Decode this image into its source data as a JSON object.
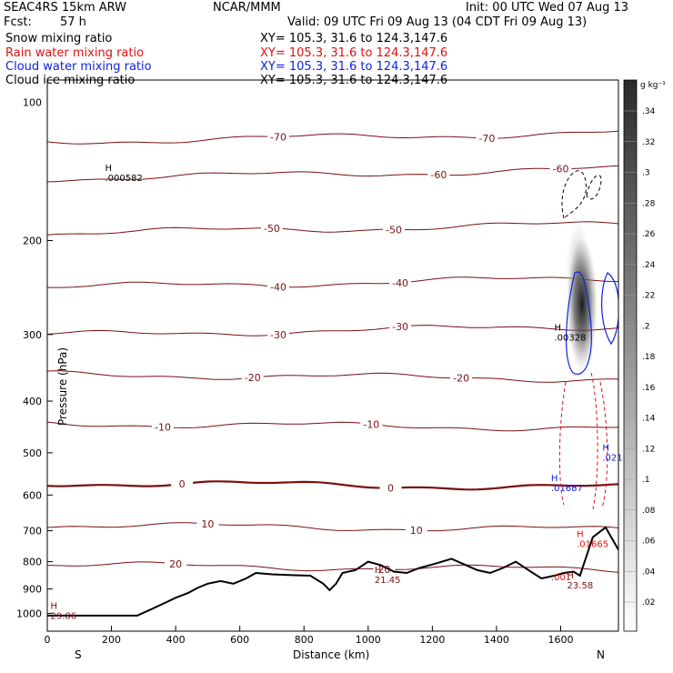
{
  "header": {
    "model": "SEAC4RS 15km ARW",
    "org": "NCAR/MMM",
    "init": "Init: 00 UTC Wed 07 Aug 13",
    "fcst_label": "Fcst:",
    "fcst_value": "57 h",
    "valid": "Valid: 09 UTC Fri 09 Aug 13 (04 CDT Fri 09 Aug 13)"
  },
  "legend": [
    {
      "name": "Snow mixing ratio",
      "xy": "XY= 105.3, 31.6 to 124.3,147.6",
      "color": "#000000"
    },
    {
      "name": "Rain water mixing ratio",
      "xy": "XY= 105.3, 31.6 to 124.3,147.6",
      "color": "#e01010"
    },
    {
      "name": "Cloud water mixing ratio",
      "xy": "XY= 105.3, 31.6 to 124.3,147.6",
      "color": "#1020e0"
    },
    {
      "name": "Cloud ice mixing ratio",
      "xy": "XY= 105.3, 31.6 to 124.3,147.6",
      "color": "#000000"
    }
  ],
  "chart_data": {
    "type": "line",
    "xlabel": "Distance (km)",
    "ylabel": "Pressure (hPa)",
    "xlim": [
      0,
      1780
    ],
    "ylim": [
      1080,
      100
    ],
    "y_log": true,
    "x_ticks": [
      "0",
      "200",
      "400",
      "600",
      "800",
      "1000",
      "1200",
      "1400",
      "1600"
    ],
    "y_ticks": [
      "200",
      "300",
      "400",
      "500",
      "600",
      "700",
      "800",
      "900",
      "1000"
    ],
    "y_top_tick": "100",
    "direction_left": "S",
    "direction_right": "N",
    "colorbar": {
      "unit": "g kg⁻¹",
      "labels": [
        ".34",
        ".32",
        ".3",
        ".28",
        ".26",
        ".24",
        ".22",
        ".2",
        ".18",
        ".16",
        ".14",
        ".12",
        ".1",
        ".08",
        ".06",
        ".04",
        ".02"
      ]
    },
    "temperature_contours": [
      {
        "level": "-70",
        "p": 128,
        "label_x": 720
      },
      {
        "level": "-60",
        "p": 150,
        "label_x": 1600
      },
      {
        "level": "-50",
        "p": 190,
        "label_x": 1080
      },
      {
        "level": "-40",
        "p": 240,
        "label_x": 1100
      },
      {
        "level": "-30",
        "p": 295,
        "label_x": 1100
      },
      {
        "level": "-20",
        "p": 360,
        "label_x": 640
      },
      {
        "level": "-10",
        "p": 445,
        "label_x": 360
      },
      {
        "level": "0",
        "p": 575,
        "label_x": 420,
        "bold": true
      },
      {
        "level": "10",
        "p": 690,
        "label_x": 500
      },
      {
        "level": "20",
        "p": 820,
        "label_x": 400
      }
    ],
    "terrain": [
      [
        0,
        1010
      ],
      [
        280,
        1010
      ],
      [
        320,
        985
      ],
      [
        360,
        960
      ],
      [
        400,
        935
      ],
      [
        440,
        915
      ],
      [
        470,
        895
      ],
      [
        500,
        880
      ],
      [
        540,
        870
      ],
      [
        580,
        880
      ],
      [
        620,
        860
      ],
      [
        650,
        840
      ],
      [
        700,
        845
      ],
      [
        760,
        848
      ],
      [
        820,
        850
      ],
      [
        860,
        880
      ],
      [
        880,
        905
      ],
      [
        900,
        880
      ],
      [
        920,
        840
      ],
      [
        960,
        830
      ],
      [
        1000,
        800
      ],
      [
        1040,
        812
      ],
      [
        1080,
        835
      ],
      [
        1120,
        840
      ],
      [
        1160,
        822
      ],
      [
        1200,
        810
      ],
      [
        1230,
        800
      ],
      [
        1260,
        790
      ],
      [
        1300,
        810
      ],
      [
        1340,
        830
      ],
      [
        1380,
        840
      ],
      [
        1420,
        822
      ],
      [
        1460,
        800
      ],
      [
        1500,
        830
      ],
      [
        1540,
        860
      ],
      [
        1580,
        850
      ],
      [
        1610,
        840
      ],
      [
        1640,
        835
      ],
      [
        1660,
        850
      ],
      [
        1700,
        720
      ],
      [
        1740,
        690
      ],
      [
        1780,
        760
      ]
    ],
    "highs": [
      {
        "text": "H",
        "value": ".000582",
        "x": 180,
        "p": 148,
        "color": "#000000"
      },
      {
        "text": "H",
        "value": ".00328",
        "x": 1580,
        "p": 295,
        "color": "#000000"
      },
      {
        "text": "H",
        "value": ".021",
        "x": 1730,
        "p": 495,
        "color": "#1020e0"
      },
      {
        "text": "H",
        "value": ".01687",
        "x": 1570,
        "p": 565,
        "color": "#1020e0"
      },
      {
        "text": "H",
        "value": ".01665",
        "x": 1650,
        "p": 720,
        "color": "#e01010"
      },
      {
        "text": "H",
        "value": "21.45",
        "x": 1020,
        "p": 840,
        "color": "#7a1010"
      },
      {
        "text": "",
        "value": ".001",
        "x": 1570,
        "p": 830,
        "color": "#e01010"
      },
      {
        "text": "H",
        "value": "23.58",
        "x": 1620,
        "p": 860,
        "color": "#7a1010"
      },
      {
        "text": "H",
        "value": "29.86",
        "x": 10,
        "p": 980,
        "color": "#7a1010"
      }
    ]
  }
}
